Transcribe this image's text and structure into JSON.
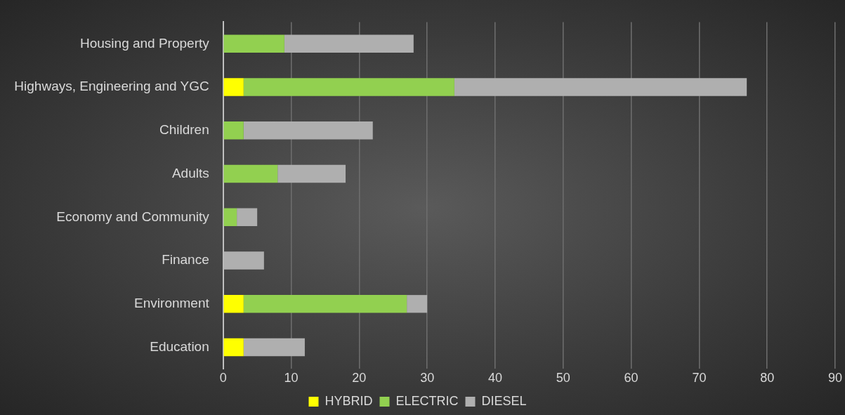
{
  "chart_data": {
    "type": "bar",
    "orientation": "horizontal",
    "stacked": true,
    "categories": [
      "Housing and Property",
      "Highways, Engineering and YGC",
      "Children",
      "Adults",
      "Economy and Community",
      "Finance",
      "Environment",
      "Education"
    ],
    "series": [
      {
        "name": "HYBRID",
        "color": "#ffff00",
        "values": [
          0,
          3,
          0,
          0,
          0,
          0,
          3,
          3
        ]
      },
      {
        "name": "ELECTRIC",
        "color": "#92d050",
        "values": [
          9,
          31,
          3,
          8,
          2,
          0,
          24,
          0
        ]
      },
      {
        "name": "DIESEL",
        "color": "#afafaf",
        "values": [
          19,
          43,
          19,
          10,
          3,
          6,
          3,
          9
        ]
      }
    ],
    "xlim": [
      0,
      90
    ],
    "xticks": [
      0,
      10,
      20,
      30,
      40,
      50,
      60,
      70,
      80,
      90
    ],
    "grid": "x",
    "legend": "bottom"
  }
}
